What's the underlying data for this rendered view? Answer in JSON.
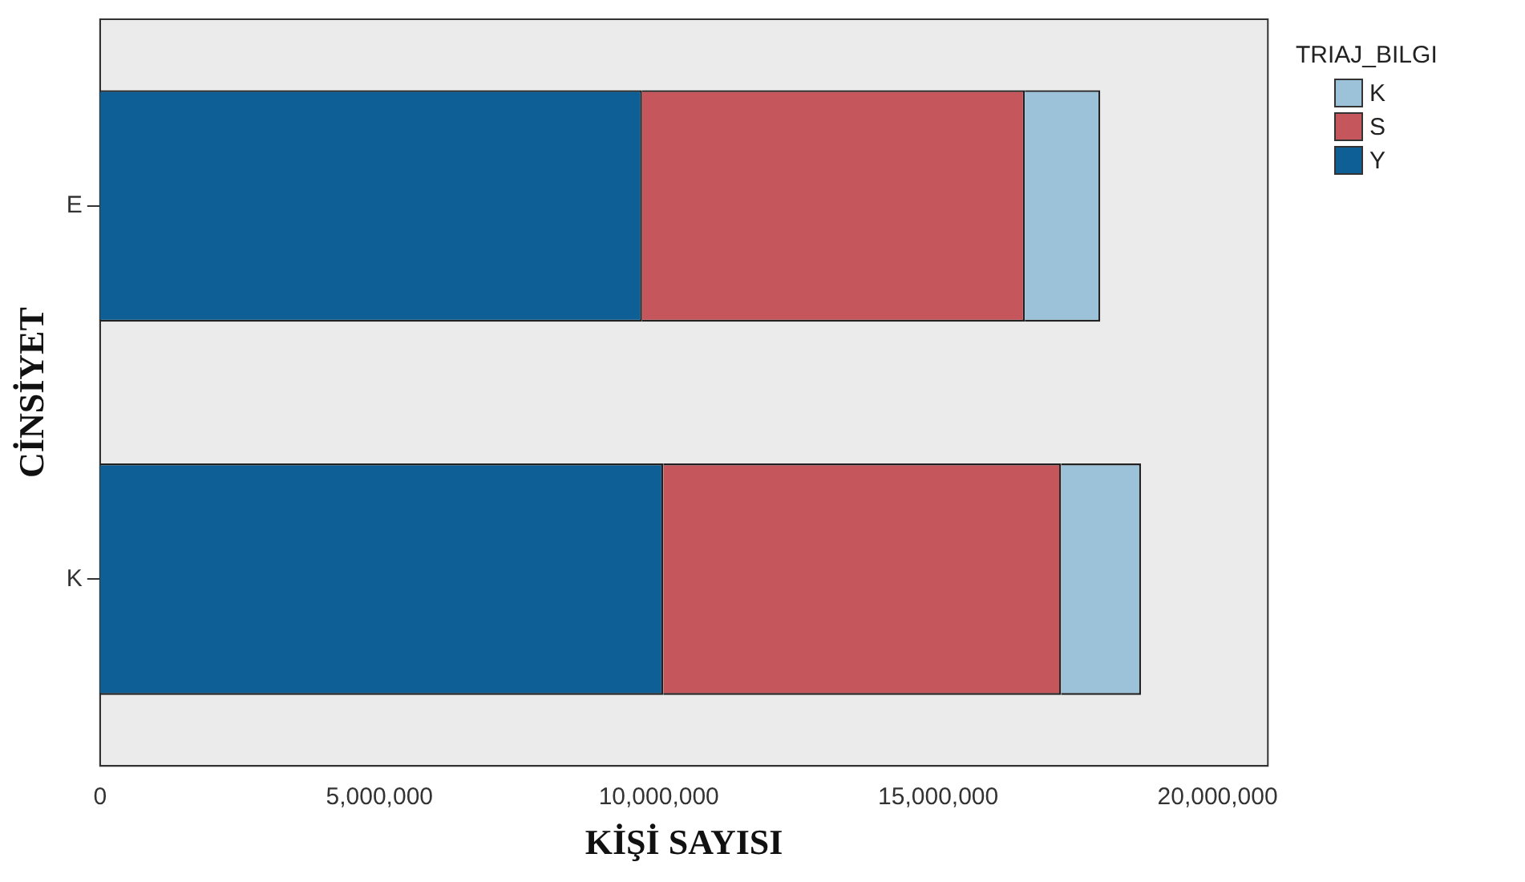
{
  "chart_data": {
    "type": "bar",
    "orientation": "horizontal",
    "stacked": true,
    "categories": [
      "E",
      "K"
    ],
    "series": [
      {
        "name": "Y",
        "color": "#0e5f96",
        "values": [
          9700000,
          10080000
        ]
      },
      {
        "name": "S",
        "color": "#c5565b",
        "values": [
          6850000,
          7120000
        ]
      },
      {
        "name": "K",
        "color": "#9bc2d9",
        "values": [
          1350000,
          1430000
        ]
      }
    ],
    "xlabel": "KİŞİ SAYISI",
    "ylabel": "CİNSİYET",
    "legend_title": "TRIAJ_BILGI",
    "legend": "top right",
    "xlim": [
      0,
      20900000
    ],
    "xticks": [
      {
        "value": 0,
        "label": "0"
      },
      {
        "value": 5000000,
        "label": "5,000,000"
      },
      {
        "value": 10000000,
        "label": "10,000,000"
      },
      {
        "value": 15000000,
        "label": "15,000,000"
      },
      {
        "value": 20000000,
        "label": "20,000,000"
      }
    ],
    "grid": false
  }
}
